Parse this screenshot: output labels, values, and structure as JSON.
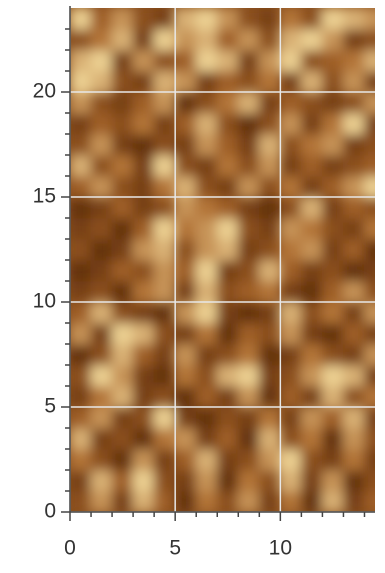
{
  "chart_data": {
    "type": "heatmap",
    "x": [
      0,
      1,
      2,
      3,
      4,
      5,
      6,
      7,
      8,
      9,
      10,
      11,
      12,
      13,
      14
    ],
    "y": [
      0,
      1,
      2,
      3,
      4,
      5,
      6,
      7,
      8,
      9,
      10,
      11,
      12,
      13,
      14,
      15,
      16,
      17,
      18,
      19,
      20,
      21,
      22,
      23
    ],
    "z": [
      [
        3,
        6,
        2,
        7,
        4,
        1,
        5,
        3,
        6,
        2,
        5,
        1,
        7,
        2,
        4
      ],
      [
        2,
        7,
        4,
        8,
        3,
        2,
        6,
        1,
        5,
        3,
        7,
        2,
        6,
        1,
        3
      ],
      [
        5,
        3,
        1,
        6,
        2,
        4,
        7,
        2,
        3,
        6,
        8,
        3,
        2,
        5,
        2
      ],
      [
        7,
        2,
        3,
        1,
        5,
        6,
        2,
        4,
        1,
        7,
        3,
        5,
        1,
        6,
        3
      ],
      [
        4,
        6,
        2,
        3,
        8,
        2,
        1,
        3,
        2,
        5,
        2,
        6,
        4,
        7,
        2
      ],
      [
        2,
        5,
        7,
        2,
        3,
        1,
        4,
        2,
        6,
        1,
        4,
        2,
        7,
        3,
        5
      ],
      [
        3,
        8,
        6,
        2,
        1,
        5,
        3,
        7,
        8,
        2,
        3,
        6,
        8,
        7,
        2
      ],
      [
        1,
        3,
        7,
        4,
        2,
        6,
        2,
        3,
        5,
        1,
        2,
        5,
        3,
        2,
        6
      ],
      [
        6,
        2,
        8,
        7,
        3,
        2,
        5,
        1,
        4,
        3,
        6,
        2,
        1,
        4,
        2
      ],
      [
        4,
        7,
        3,
        2,
        1,
        6,
        8,
        2,
        1,
        2,
        7,
        3,
        5,
        2,
        6
      ],
      [
        2,
        3,
        1,
        5,
        6,
        2,
        7,
        3,
        4,
        5,
        2,
        1,
        4,
        6,
        3
      ],
      [
        1,
        2,
        4,
        3,
        6,
        4,
        8,
        2,
        3,
        7,
        4,
        2,
        3,
        1,
        2
      ],
      [
        3,
        1,
        2,
        6,
        7,
        3,
        6,
        7,
        2,
        3,
        5,
        6,
        2,
        4,
        1
      ],
      [
        2,
        3,
        1,
        4,
        8,
        5,
        6,
        8,
        3,
        2,
        6,
        5,
        3,
        2,
        5
      ],
      [
        1,
        2,
        4,
        2,
        3,
        6,
        5,
        4,
        2,
        1,
        3,
        7,
        2,
        4,
        3
      ],
      [
        4,
        6,
        3,
        2,
        5,
        7,
        3,
        2,
        6,
        3,
        5,
        2,
        4,
        6,
        8
      ],
      [
        7,
        3,
        5,
        2,
        8,
        3,
        2,
        5,
        3,
        6,
        2,
        4,
        2,
        3,
        4
      ],
      [
        3,
        6,
        2,
        1,
        3,
        2,
        6,
        4,
        2,
        7,
        3,
        5,
        6,
        2,
        3
      ],
      [
        2,
        4,
        3,
        5,
        2,
        4,
        7,
        3,
        1,
        3,
        6,
        2,
        5,
        8,
        2
      ],
      [
        6,
        3,
        2,
        4,
        6,
        1,
        3,
        5,
        7,
        2,
        4,
        3,
        2,
        3,
        6
      ],
      [
        8,
        7,
        3,
        2,
        7,
        6,
        2,
        4,
        3,
        5,
        2,
        7,
        3,
        6,
        2
      ],
      [
        7,
        8,
        2,
        6,
        3,
        4,
        8,
        7,
        2,
        6,
        8,
        3,
        4,
        5,
        7
      ],
      [
        3,
        5,
        7,
        2,
        8,
        6,
        7,
        4,
        6,
        3,
        7,
        8,
        6,
        2,
        3
      ],
      [
        8,
        4,
        6,
        3,
        2,
        7,
        8,
        6,
        3,
        2,
        5,
        3,
        8,
        7,
        6
      ]
    ],
    "zlim": [
      0,
      9
    ],
    "colormap": [
      "#4f2408",
      "#a9652a",
      "#ffeeb0"
    ],
    "xlim": [
      0,
      14.5
    ],
    "ylim": [
      0,
      24
    ],
    "xticks": [
      0,
      5,
      10
    ],
    "yticks": [
      0,
      5,
      10,
      15,
      20
    ],
    "xminor_ticks": [
      1,
      2,
      3,
      4,
      6,
      7,
      8,
      9,
      11,
      12,
      13,
      14
    ],
    "yminor_ticks": [
      1,
      2,
      3,
      4,
      6,
      7,
      8,
      9,
      11,
      12,
      13,
      14,
      16,
      17,
      18,
      19,
      21,
      22,
      23
    ],
    "grid": true,
    "grid_color": "#e8e8e8"
  }
}
